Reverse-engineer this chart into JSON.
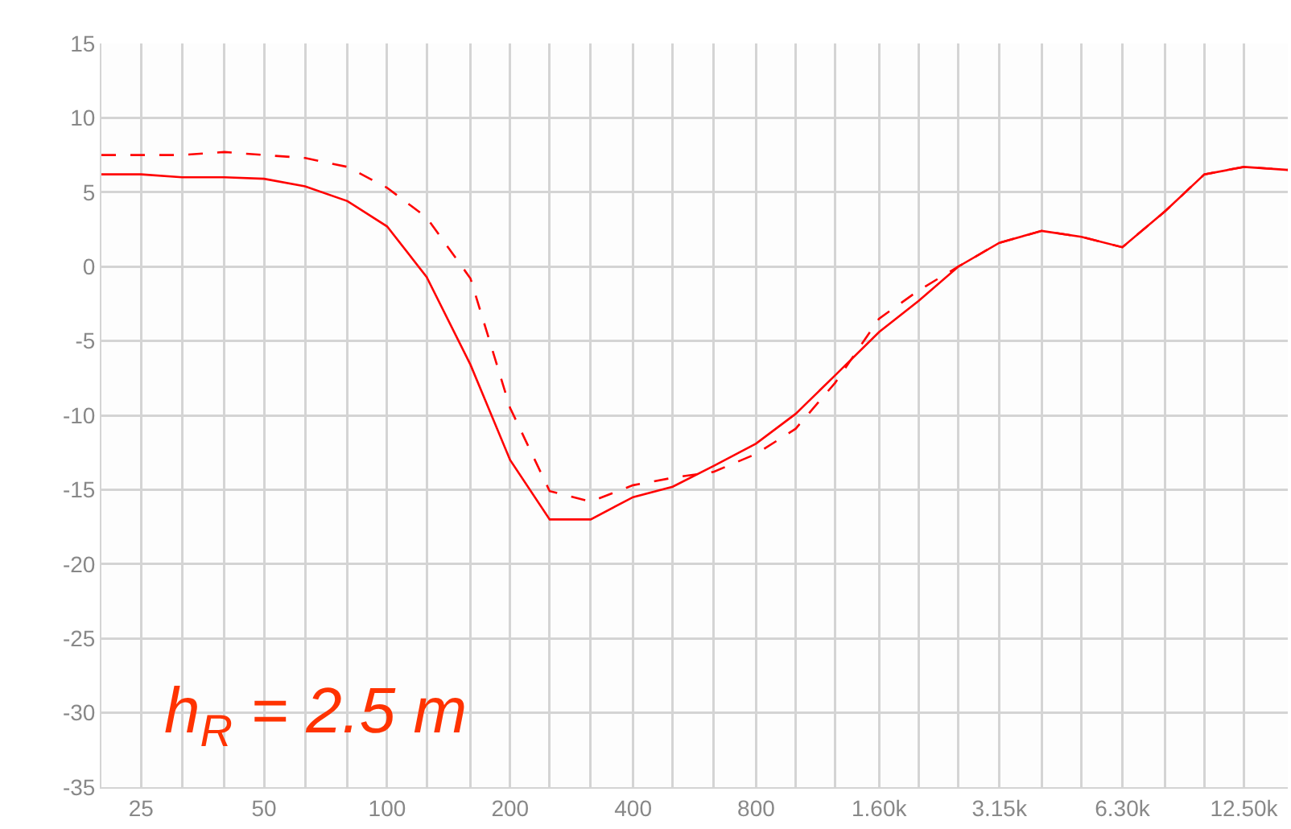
{
  "chart_data": {
    "type": "line",
    "x": [
      20,
      25,
      31.5,
      40,
      50,
      63,
      80,
      100,
      125,
      160,
      200,
      250,
      315,
      400,
      500,
      630,
      800,
      1000,
      1250,
      1600,
      2000,
      2500,
      3150,
      4000,
      5000,
      6300,
      8000,
      10000,
      12500,
      16000
    ],
    "series": [
      {
        "color": "#ff0000",
        "line_style": "solid",
        "values": [
          6.2,
          6.2,
          6.0,
          6.0,
          5.9,
          5.4,
          4.4,
          2.7,
          -0.7,
          -6.6,
          -13.0,
          -17.0,
          -17.0,
          -15.5,
          -14.8,
          -13.4,
          -11.9,
          -9.9,
          -7.3,
          -4.4,
          -2.3,
          0.0,
          1.6,
          2.4,
          2.0,
          1.3,
          3.7,
          6.2,
          6.7,
          6.5
        ]
      },
      {
        "color": "#ff0000",
        "line_style": "dashed",
        "values": [
          7.5,
          7.5,
          7.5,
          7.7,
          7.5,
          7.3,
          6.7,
          5.3,
          3.3,
          -0.8,
          -9.5,
          -15.1,
          -15.8,
          -14.7,
          -14.2,
          -13.8,
          -12.6,
          -10.9,
          -7.8,
          -3.5,
          -1.6,
          0.0,
          1.6,
          2.4,
          2.0,
          1.3,
          3.7,
          6.2,
          6.7,
          6.5
        ]
      }
    ],
    "log": "x",
    "xlim": [
      20,
      16000
    ],
    "xticks": [
      {
        "value": 20,
        "label": null
      },
      25,
      {
        "value": 31.5,
        "label": null
      },
      {
        "value": 40,
        "label": null
      },
      50,
      {
        "value": 63,
        "label": null
      },
      {
        "value": 80,
        "label": null
      },
      100,
      {
        "value": 125,
        "label": null
      },
      {
        "value": 160,
        "label": null
      },
      200,
      {
        "value": 250,
        "label": null
      },
      {
        "value": 315,
        "label": null
      },
      400,
      {
        "value": 500,
        "label": null
      },
      {
        "value": 630,
        "label": null
      },
      800,
      {
        "value": 1000,
        "label": null
      },
      {
        "value": 1250,
        "label": null
      },
      {
        "value": 1600,
        "label": "1.60k"
      },
      {
        "value": 2000,
        "label": null
      },
      {
        "value": 2500,
        "label": null
      },
      {
        "value": 3150,
        "label": "3.15k"
      },
      {
        "value": 4000,
        "label": null
      },
      {
        "value": 5000,
        "label": null
      },
      {
        "value": 6300,
        "label": "6.30k"
      },
      {
        "value": 8000,
        "label": null
      },
      {
        "value": 10000,
        "label": null
      },
      {
        "value": 12500,
        "label": "12.50k"
      }
    ],
    "ylim": [
      -35,
      15
    ],
    "yticks": [
      -35,
      -30,
      -25,
      -20,
      -15,
      -10,
      -5,
      0,
      5,
      10,
      15
    ],
    "grid": true,
    "marker": "none",
    "annotations": [
      "h$_{R}$ = 2.5 m"
    ]
  }
}
